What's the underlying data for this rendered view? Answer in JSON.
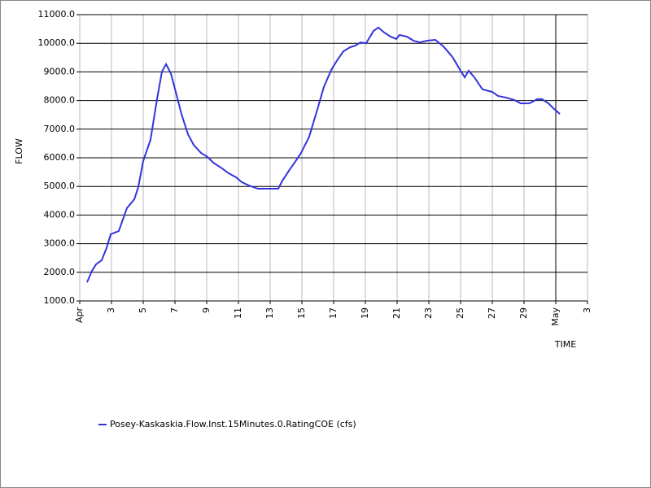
{
  "chart_data": {
    "type": "line",
    "y_label": "FLOW",
    "x_label": "TIME",
    "xlim": [
      0,
      32
    ],
    "ylim": [
      1000,
      11000
    ],
    "xticks": [
      {
        "value": 0,
        "label": "Apr"
      },
      {
        "value": 2,
        "label": "3"
      },
      {
        "value": 4,
        "label": "5"
      },
      {
        "value": 6,
        "label": "7"
      },
      {
        "value": 8,
        "label": "9"
      },
      {
        "value": 10,
        "label": "11"
      },
      {
        "value": 12,
        "label": "13"
      },
      {
        "value": 14,
        "label": "15"
      },
      {
        "value": 16,
        "label": "17"
      },
      {
        "value": 18,
        "label": "19"
      },
      {
        "value": 20,
        "label": "21"
      },
      {
        "value": 22,
        "label": "23"
      },
      {
        "value": 24,
        "label": "25"
      },
      {
        "value": 26,
        "label": "27"
      },
      {
        "value": 28,
        "label": "29"
      },
      {
        "value": 30,
        "label": "May"
      },
      {
        "value": 32,
        "label": "3"
      }
    ],
    "yticks": [
      {
        "value": 1000,
        "label": "1000.0"
      },
      {
        "value": 2000,
        "label": "2000.0"
      },
      {
        "value": 3000,
        "label": "3000.0"
      },
      {
        "value": 4000,
        "label": "4000.0"
      },
      {
        "value": 5000,
        "label": "5000.0"
      },
      {
        "value": 6000,
        "label": "6000.0"
      },
      {
        "value": 7000,
        "label": "7000.0"
      },
      {
        "value": 8000,
        "label": "8000.0"
      },
      {
        "value": 9000,
        "label": "9000.0"
      },
      {
        "value": 10000,
        "label": "10000.0"
      },
      {
        "value": 11000,
        "label": "11000.0"
      }
    ],
    "grid": true,
    "x_marker": 30,
    "series": [
      {
        "name": "Posey-Kaskaskia.Flow.Inst.15Minutes.0.RatingCOE (cfs)",
        "color": "#3333dd",
        "x": [
          0.46,
          0.77,
          1.03,
          1.38,
          1.69,
          1.95,
          2.46,
          2.97,
          3.44,
          3.69,
          4.0,
          4.46,
          4.87,
          5.18,
          5.44,
          5.74,
          6.05,
          6.41,
          6.82,
          7.18,
          7.64,
          8.05,
          8.41,
          8.97,
          9.38,
          9.85,
          10.21,
          10.67,
          11.23,
          12.0,
          12.51,
          12.77,
          13.28,
          13.54,
          13.95,
          14.46,
          14.97,
          15.38,
          15.85,
          16.26,
          16.62,
          17.03,
          17.38,
          17.69,
          18.05,
          18.51,
          18.82,
          19.18,
          19.59,
          19.95,
          20.15,
          20.62,
          21.03,
          21.44,
          21.9,
          22.41,
          22.92,
          23.49,
          23.85,
          24.26,
          24.51,
          24.87,
          25.38,
          26.0,
          26.36,
          26.87,
          27.38,
          27.79,
          28.31,
          28.56,
          28.82,
          29.13,
          29.54,
          29.9,
          30.26
        ],
        "values": [
          1650,
          2050,
          2280,
          2420,
          2850,
          3330,
          3440,
          4240,
          4550,
          4980,
          5890,
          6630,
          8050,
          9010,
          9270,
          8950,
          8300,
          7530,
          6820,
          6450,
          6170,
          6030,
          5830,
          5630,
          5460,
          5320,
          5150,
          5030,
          4920,
          4920,
          4920,
          5200,
          5630,
          5830,
          6170,
          6740,
          7680,
          8470,
          9070,
          9440,
          9720,
          9860,
          9920,
          10030,
          10000,
          10430,
          10550,
          10380,
          10230,
          10150,
          10290,
          10230,
          10090,
          10030,
          10090,
          10120,
          9890,
          9520,
          9180,
          8810,
          9040,
          8810,
          8390,
          8300,
          8160,
          8100,
          8020,
          7900,
          7900,
          7960,
          8050,
          8050,
          7900,
          7700,
          7530
        ]
      }
    ]
  }
}
